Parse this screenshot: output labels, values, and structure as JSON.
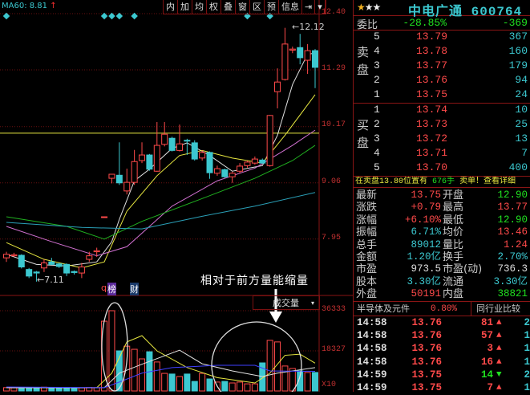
{
  "toolbar": {
    "ma60_label": "MA60: 8.81",
    "ma60_arrow": "↑",
    "buttons": [
      "内",
      "加",
      "均",
      "权",
      "叠",
      "窗",
      "区",
      "预",
      "信息",
      "⇥",
      "▾"
    ]
  },
  "price_axis": [
    "12.40",
    "11.29",
    "10.17",
    "9.06",
    "7.95"
  ],
  "volume_axis": [
    "36333",
    "18327",
    "X10"
  ],
  "volume_selector": {
    "label": "成交量",
    "arrow": "▾"
  },
  "annotations": {
    "note": "相对于前方量能缩量",
    "high_label": "12.12",
    "low_label": "7.11",
    "markers": [
      "q",
      "榜",
      "财"
    ]
  },
  "colors": {
    "up": "#ff4a4a",
    "down": "#3cc8d0",
    "ma5": "#e0e0e0",
    "ma10": "#e8e840",
    "ma20": "#d070d0",
    "ma30": "#20b020",
    "ma60": "#2aa0b8",
    "vol_ma20": "#4040ff"
  },
  "reference_line": 10.04,
  "signal_diamonds": [
    0,
    13,
    14,
    15,
    17,
    32,
    35
  ],
  "kline": [
    [
      7.58,
      7.7,
      7.5,
      7.65
    ],
    [
      7.62,
      7.68,
      7.6,
      7.64
    ],
    [
      7.63,
      7.65,
      7.37,
      7.4
    ],
    [
      7.35,
      7.38,
      7.18,
      7.22
    ],
    [
      7.3,
      7.32,
      7.11,
      7.28
    ],
    [
      7.38,
      7.55,
      7.3,
      7.48
    ],
    [
      7.5,
      7.58,
      7.44,
      7.45
    ],
    [
      7.46,
      7.48,
      7.38,
      7.41
    ],
    [
      7.45,
      7.47,
      7.22,
      7.28
    ],
    [
      7.31,
      7.33,
      7.25,
      7.29
    ],
    [
      7.28,
      7.48,
      7.18,
      7.4
    ],
    [
      7.55,
      7.7,
      7.5,
      7.62
    ],
    [
      7.7,
      7.78,
      7.6,
      7.72
    ],
    [
      8.39,
      8.39,
      8.39,
      8.39
    ],
    [
      9.15,
      9.23,
      9.05,
      9.23
    ],
    [
      9.21,
      9.86,
      9.02,
      9.06
    ],
    [
      8.9,
      9.34,
      8.83,
      9.07
    ],
    [
      9.07,
      9.71,
      9.02,
      9.48
    ],
    [
      9.5,
      9.86,
      9.45,
      9.61
    ],
    [
      9.61,
      9.63,
      9.3,
      9.33
    ],
    [
      9.29,
      10.26,
      9.28,
      9.8
    ],
    [
      9.82,
      10.26,
      9.78,
      10.02
    ],
    [
      9.94,
      9.97,
      9.68,
      9.7
    ],
    [
      9.7,
      10.21,
      9.68,
      9.83
    ],
    [
      9.9,
      9.93,
      9.61,
      9.89
    ],
    [
      9.85,
      9.9,
      9.5,
      9.53
    ],
    [
      9.55,
      9.7,
      9.5,
      9.66
    ],
    [
      9.66,
      9.68,
      9.14,
      9.26
    ],
    [
      9.25,
      9.4,
      9.2,
      9.34
    ],
    [
      9.32,
      9.34,
      9.16,
      9.18
    ],
    [
      9.18,
      9.28,
      9.06,
      9.25
    ],
    [
      9.29,
      9.45,
      9.25,
      9.39
    ],
    [
      9.4,
      9.5,
      9.36,
      9.47
    ],
    [
      9.45,
      9.58,
      9.42,
      9.53
    ],
    [
      9.51,
      9.54,
      9.44,
      9.45
    ],
    [
      9.4,
      10.4,
      9.38,
      10.39
    ],
    [
      10.86,
      11.32,
      10.53,
      11.05
    ],
    [
      11.1,
      12.12,
      11.08,
      11.8
    ],
    [
      11.68,
      11.75,
      11.62,
      11.7
    ],
    [
      11.73,
      12.0,
      11.4,
      11.53
    ],
    [
      11.48,
      11.8,
      11.21,
      11.67
    ],
    [
      11.67,
      11.7,
      10.93,
      11.34
    ]
  ],
  "ma_lines": {
    "ma5": [
      [
        0,
        7.65
      ],
      [
        4,
        7.45
      ],
      [
        8,
        7.42
      ],
      [
        12,
        7.5
      ],
      [
        14,
        7.9
      ],
      [
        15,
        8.34
      ],
      [
        17,
        9.1
      ],
      [
        19,
        9.33
      ],
      [
        22,
        9.74
      ],
      [
        24,
        9.85
      ],
      [
        27,
        9.6
      ],
      [
        30,
        9.29
      ],
      [
        34,
        9.4
      ],
      [
        36,
        10.0
      ],
      [
        38,
        11.0
      ],
      [
        40,
        11.6
      ],
      [
        41,
        11.62
      ]
    ],
    "ma10": [
      [
        0,
        7.88
      ],
      [
        5,
        7.55
      ],
      [
        10,
        7.38
      ],
      [
        13,
        7.5
      ],
      [
        16,
        8.5
      ],
      [
        20,
        9.2
      ],
      [
        23,
        9.6
      ],
      [
        26,
        9.7
      ],
      [
        30,
        9.55
      ],
      [
        34,
        9.45
      ],
      [
        37,
        10.0
      ],
      [
        41,
        10.8
      ]
    ],
    "ma20": [
      [
        0,
        8.2
      ],
      [
        6,
        7.9
      ],
      [
        12,
        7.62
      ],
      [
        16,
        7.8
      ],
      [
        22,
        8.6
      ],
      [
        28,
        9.1
      ],
      [
        33,
        9.35
      ],
      [
        38,
        9.8
      ],
      [
        41,
        10.1
      ]
    ],
    "ma30": [
      [
        0,
        8.39
      ],
      [
        8,
        8.2
      ],
      [
        13,
        7.95
      ],
      [
        18,
        8.3
      ],
      [
        26,
        8.75
      ],
      [
        33,
        9.15
      ],
      [
        38,
        9.5
      ],
      [
        41,
        9.8
      ]
    ],
    "ma60": [
      [
        0,
        8.28
      ],
      [
        10,
        8.18
      ],
      [
        18,
        8.15
      ],
      [
        26,
        8.4
      ],
      [
        33,
        8.6
      ],
      [
        41,
        8.87
      ]
    ]
  },
  "volume": [
    1500,
    1400,
    1600,
    1300,
    1500,
    1700,
    1400,
    1300,
    1500,
    1200,
    1400,
    1600,
    1500,
    31300,
    36000,
    18000,
    20100,
    18700,
    14400,
    17600,
    13000,
    7900,
    7600,
    6500,
    7600,
    4300,
    7900,
    5400,
    4000,
    4300,
    3600,
    4000,
    3200,
    3200,
    12600,
    22700,
    22000,
    11200,
    10100,
    9000,
    8300,
    8300
  ],
  "volume_ma": {
    "ma5": [
      [
        0,
        1500
      ],
      [
        12,
        1500
      ],
      [
        14,
        8000
      ],
      [
        16,
        22000
      ],
      [
        18,
        24800
      ],
      [
        20,
        18000
      ],
      [
        24,
        10500
      ],
      [
        28,
        6000
      ],
      [
        33,
        3600
      ],
      [
        35,
        8000
      ],
      [
        37,
        16000
      ],
      [
        39,
        16500
      ],
      [
        41,
        12500
      ]
    ],
    "ma10": [
      [
        0,
        1500
      ],
      [
        13,
        1500
      ],
      [
        15,
        8000
      ],
      [
        18,
        12000
      ],
      [
        23,
        18300
      ],
      [
        26,
        12200
      ],
      [
        30,
        9000
      ],
      [
        34,
        6500
      ],
      [
        36,
        8000
      ],
      [
        38,
        9000
      ],
      [
        41,
        10500
      ]
    ],
    "ma20": [
      [
        0,
        1800
      ],
      [
        13,
        1500
      ],
      [
        15,
        4000
      ],
      [
        18,
        8000
      ],
      [
        22,
        10500
      ],
      [
        28,
        11500
      ],
      [
        33,
        11500
      ],
      [
        35,
        9000
      ],
      [
        41,
        8800
      ]
    ]
  },
  "quote": {
    "stars": "★★★",
    "name": "中电广通",
    "code": "600764",
    "weibi_label": "委比",
    "weibi_pct": "-28.85%",
    "weibi_diff": "-369",
    "sell_label": "卖盘",
    "buy_label": "买盘",
    "sell": [
      {
        "lv": "5",
        "price": "13.79",
        "vol": "367"
      },
      {
        "lv": "4",
        "price": "13.78",
        "vol": "160"
      },
      {
        "lv": "3",
        "price": "13.77",
        "vol": "179"
      },
      {
        "lv": "2",
        "price": "13.76",
        "vol": "94"
      },
      {
        "lv": "1",
        "price": "13.75",
        "vol": "24"
      }
    ],
    "buy": [
      {
        "lv": "1",
        "price": "13.74",
        "vol": "10"
      },
      {
        "lv": "2",
        "price": "13.73",
        "vol": "25"
      },
      {
        "lv": "3",
        "price": "13.72",
        "vol": "13"
      },
      {
        "lv": "4",
        "price": "13.71",
        "vol": "7"
      },
      {
        "lv": "5",
        "price": "13.70",
        "vol": "400"
      }
    ],
    "info_a": "在卖盘13.80位置有",
    "info_b": "676手",
    "info_c": "卖单！查看详细",
    "stats": [
      {
        "l1": "最新",
        "v1": "13.75",
        "c1": "red",
        "l2": "开盘",
        "v2": "12.90",
        "c2": "grn"
      },
      {
        "l1": "涨跌",
        "v1": "+0.79",
        "c1": "red",
        "l2": "最高",
        "v2": "13.77",
        "c2": "red"
      },
      {
        "l1": "涨幅",
        "v1": "+6.10%",
        "c1": "red",
        "l2": "最低",
        "v2": "12.90",
        "c2": "grn"
      },
      {
        "l1": "振幅",
        "v1": "6.71%",
        "c1": "cyan",
        "l2": "均价",
        "v2": "13.46",
        "c2": "red"
      },
      {
        "l1": "总手",
        "v1": "89012",
        "c1": "cyan",
        "l2": "量比",
        "v2": "1.24",
        "c2": "red"
      },
      {
        "l1": "金额",
        "v1": "1.20亿",
        "c1": "cyan",
        "l2": "换手",
        "v2": "2.70%",
        "c2": "cyan"
      },
      {
        "l1": "市盈",
        "v1": "973.5",
        "c1": "wht",
        "l2": "市盈(动)",
        "v2": "736.3",
        "c2": "wht"
      },
      {
        "l1": "股本",
        "v1": "3.30亿",
        "c1": "cyan",
        "l2": "流通",
        "v2": "3.30亿",
        "c2": "cyan"
      },
      {
        "l1": "外盘",
        "v1": "50191",
        "c1": "red",
        "l2": "内盘",
        "v2": "38821",
        "c2": "grn"
      }
    ],
    "industry": "半导体及元件",
    "industry_pct": "0.80%",
    "industry_compare": "同行业比较",
    "ticks": [
      {
        "time": "14:58",
        "price": "13.76",
        "vol": "81",
        "dir": "up",
        "n": "2"
      },
      {
        "time": "14:58",
        "price": "13.76",
        "vol": "57",
        "dir": "up",
        "n": "1"
      },
      {
        "time": "14:58",
        "price": "13.76",
        "vol": "3",
        "dir": "up",
        "n": "1"
      },
      {
        "time": "14:58",
        "price": "13.76",
        "vol": "16",
        "dir": "up",
        "n": "1"
      },
      {
        "time": "14:59",
        "price": "13.75",
        "vol": "14",
        "dir": "down",
        "n": "2"
      },
      {
        "time": "14:59",
        "price": "13.75",
        "vol": "7",
        "dir": "up",
        "n": "1"
      }
    ]
  }
}
